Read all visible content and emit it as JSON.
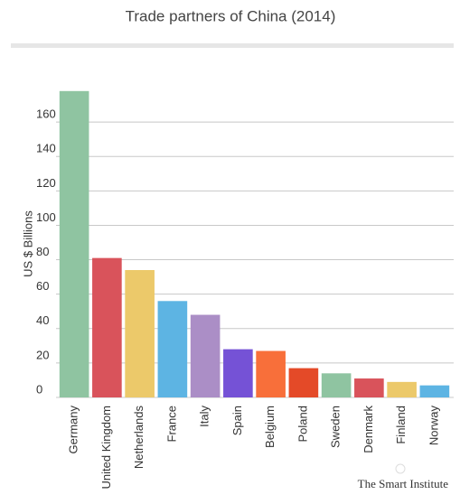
{
  "chart_data": {
    "type": "bar",
    "title": "Trade partners of China (2014)",
    "y_label": "US $ Billions",
    "categories": [
      "Germany",
      "United Kingdom",
      "Netherlands",
      "France",
      "Italy",
      "Spain",
      "Belgium",
      "Poland",
      "Sweden",
      "Denmark",
      "Finland",
      "Norway"
    ],
    "values": [
      178,
      81,
      74,
      56,
      48,
      28,
      27,
      17,
      14,
      11,
      9,
      7
    ],
    "colors": [
      "#8fc4a1",
      "#d9535b",
      "#ecc96a",
      "#5db4e3",
      "#ab8ec6",
      "#7552d6",
      "#f86f3a",
      "#e44a28",
      "#8fc4a1",
      "#d9535b",
      "#ecc96a",
      "#5db4e3"
    ],
    "ylim": [
      0,
      180
    ],
    "yticks": [
      0,
      20,
      40,
      60,
      80,
      100,
      120,
      140,
      160
    ],
    "grid": true,
    "credit": "The Smart Institute"
  }
}
